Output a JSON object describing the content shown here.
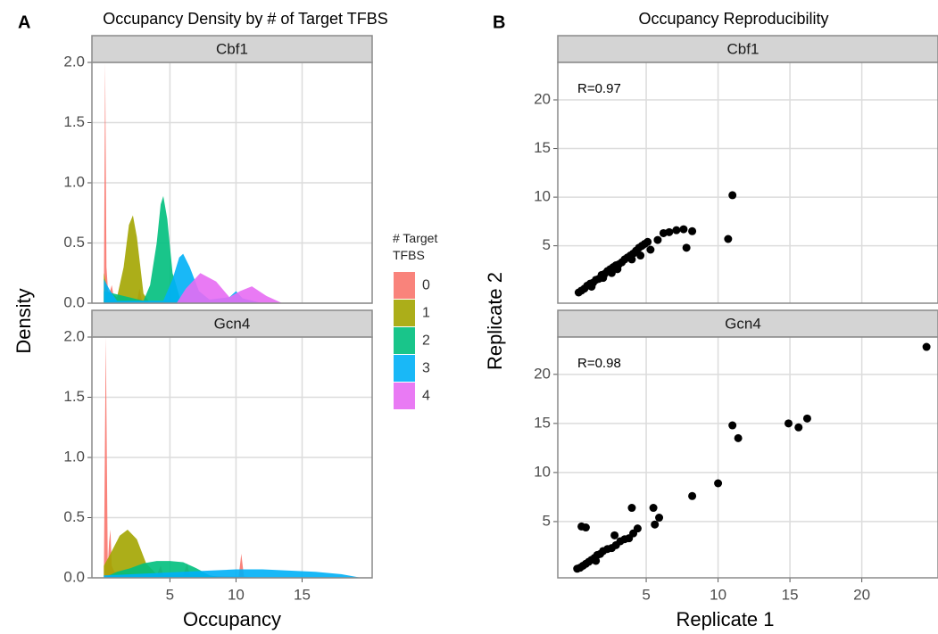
{
  "chart_data": [
    {
      "type": "density",
      "panel_label": "A",
      "title": "Occupancy Density by # of Target TFBS",
      "xlabel": "Occupancy",
      "ylabel": "Density",
      "xlim": [
        -0.9,
        20.3
      ],
      "xticks": [
        5,
        10,
        15
      ],
      "ylim": [
        0,
        2.0
      ],
      "yticks": [
        {
          "value": 0,
          "label": "0.0"
        },
        0.5,
        {
          "value": 1,
          "label": "1.0"
        },
        1.5,
        {
          "value": 2,
          "label": "2.0"
        }
      ],
      "grid": true,
      "legend": {
        "title": "# Target TFBS",
        "position": "right"
      },
      "series": [
        {
          "name": "0",
          "color": "#F8766D"
        },
        {
          "name": "1",
          "color": "#A3A500"
        },
        {
          "name": "2",
          "color": "#00BF7D"
        },
        {
          "name": "3",
          "color": "#00B0F6"
        },
        {
          "name": "4",
          "color": "#E76BF3"
        }
      ],
      "facets": [
        {
          "name": "Cbf1",
          "series": [
            {
              "x": [
                0,
                0.1,
                0.2,
                0.35,
                0.6,
                0.8,
                1.0,
                2.5,
                2.7,
                2.9,
                4,
                19
              ],
              "values": [
                0,
                2.0,
                0.3,
                0.05,
                0.15,
                0.02,
                0.01,
                0.01,
                0.12,
                0.01,
                0,
                0
              ]
            },
            {
              "x": [
                0,
                0.3,
                1.0,
                1.5,
                1.9,
                2.2,
                2.5,
                3.0,
                3.5
              ],
              "values": [
                0.25,
                0.1,
                0.05,
                0.3,
                0.65,
                0.73,
                0.55,
                0.08,
                0
              ]
            },
            {
              "x": [
                0,
                3.0,
                3.5,
                4.0,
                4.3,
                4.5,
                4.8,
                5.2,
                5.8,
                6.5
              ],
              "values": [
                0.1,
                0.02,
                0.15,
                0.5,
                0.82,
                0.89,
                0.7,
                0.25,
                0.03,
                0
              ]
            },
            {
              "x": [
                0,
                0.5,
                1,
                4.5,
                5.2,
                5.7,
                6.0,
                6.5,
                7.2,
                8,
                9.5,
                10,
                10.5,
                12
              ],
              "values": [
                0.2,
                0.1,
                0.02,
                0.02,
                0.2,
                0.38,
                0.41,
                0.3,
                0.1,
                0.03,
                0.05,
                0.1,
                0.04,
                0
              ]
            },
            {
              "x": [
                5.5,
                6.2,
                7.3,
                8.5,
                9.5,
                10.3,
                11.2,
                12.3,
                13.5
              ],
              "values": [
                0,
                0.12,
                0.25,
                0.18,
                0.05,
                0.1,
                0.14,
                0.06,
                0
              ]
            }
          ]
        },
        {
          "name": "Gcn4",
          "series": [
            {
              "x": [
                0,
                0.15,
                0.3,
                0.4,
                0.5,
                0.6,
                0.8,
                2,
                4,
                4.3,
                4.5,
                6,
                6.3,
                6.5,
                10.2,
                10.4,
                10.6,
                12
              ],
              "values": [
                0,
                2.0,
                0.1,
                0.3,
                0.4,
                0.1,
                0.05,
                0.03,
                0.02,
                0.1,
                0.02,
                0.02,
                0.12,
                0.02,
                0.01,
                0.2,
                0.01,
                0
              ]
            },
            {
              "x": [
                0,
                0.5,
                1.2,
                1.8,
                2.5,
                3.2,
                4,
                5
              ],
              "values": [
                0.1,
                0.2,
                0.35,
                0.4,
                0.32,
                0.12,
                0.03,
                0
              ]
            },
            {
              "x": [
                0,
                1,
                2,
                3,
                4,
                5,
                6,
                7,
                8,
                9
              ],
              "values": [
                0,
                0.05,
                0.08,
                0.12,
                0.14,
                0.14,
                0.13,
                0.08,
                0.02,
                0
              ]
            },
            {
              "x": [
                0,
                2,
                4,
                6,
                8,
                10,
                12,
                14,
                16,
                18,
                19.5
              ],
              "values": [
                0.02,
                0.03,
                0.04,
                0.05,
                0.06,
                0.07,
                0.07,
                0.06,
                0.05,
                0.03,
                0
              ]
            }
          ]
        }
      ]
    },
    {
      "type": "scatter",
      "panel_label": "B",
      "title": "Occupancy Reproducibility",
      "xlabel": "Replicate 1",
      "ylabel": "Replicate 2",
      "xlim": [
        -1.15,
        25.3
      ],
      "xticks": [
        5,
        10,
        15,
        20
      ],
      "grid": true,
      "color": "#000000",
      "facets": [
        {
          "name": "Cbf1",
          "annotation": "R=0.97",
          "ylim": [
            -0.9,
            23.85
          ],
          "yticks": [
            5,
            10,
            15,
            20
          ],
          "x": [
            0.3,
            0.5,
            0.7,
            0.9,
            1.1,
            1.3,
            1.5,
            1.7,
            1.9,
            2.1,
            2.3,
            2.5,
            2.7,
            2.9,
            3.1,
            3.3,
            3.5,
            3.7,
            3.9,
            4.1,
            4.3,
            4.5,
            4.7,
            4.9,
            5.1,
            2.0,
            3.0,
            4.0,
            4.6,
            5.3,
            5.8,
            6.2,
            6.6,
            7.1,
            7.6,
            8.2,
            7.8,
            10.7,
            11.0,
            1.2,
            2.6
          ],
          "values": [
            0.2,
            0.4,
            0.6,
            0.9,
            1.1,
            1.2,
            1.5,
            1.6,
            2.0,
            2.1,
            2.4,
            2.6,
            2.8,
            3.0,
            3.1,
            3.3,
            3.6,
            3.8,
            4.0,
            4.2,
            4.5,
            4.8,
            5.0,
            5.2,
            5.4,
            1.7,
            2.6,
            3.6,
            4.0,
            4.6,
            5.6,
            6.3,
            6.4,
            6.6,
            6.7,
            6.5,
            4.8,
            5.7,
            10.2,
            0.8,
            2.2
          ]
        },
        {
          "name": "Gcn4",
          "annotation": "R=0.98",
          "ylim": [
            -0.73,
            23.8
          ],
          "yticks": [
            5,
            10,
            15,
            20
          ],
          "x": [
            0.2,
            0.4,
            0.6,
            0.8,
            1.0,
            1.2,
            1.4,
            1.6,
            1.8,
            2.0,
            2.3,
            2.6,
            2.9,
            3.2,
            3.5,
            3.8,
            4.1,
            4.4,
            0.5,
            0.8,
            4.0,
            5.5,
            5.6,
            5.9,
            8.2,
            10.0,
            11.0,
            11.4,
            14.9,
            15.6,
            16.2,
            24.5,
            1.5,
            2.8
          ],
          "values": [
            0.2,
            0.3,
            0.5,
            0.7,
            0.9,
            1.1,
            1.3,
            1.6,
            1.7,
            2.0,
            2.2,
            2.3,
            2.6,
            3.0,
            3.2,
            3.3,
            3.8,
            4.3,
            4.5,
            4.4,
            6.4,
            6.4,
            4.7,
            5.4,
            7.6,
            8.9,
            14.8,
            13.5,
            15.0,
            14.6,
            15.5,
            22.8,
            1.0,
            3.6
          ]
        }
      ]
    }
  ]
}
